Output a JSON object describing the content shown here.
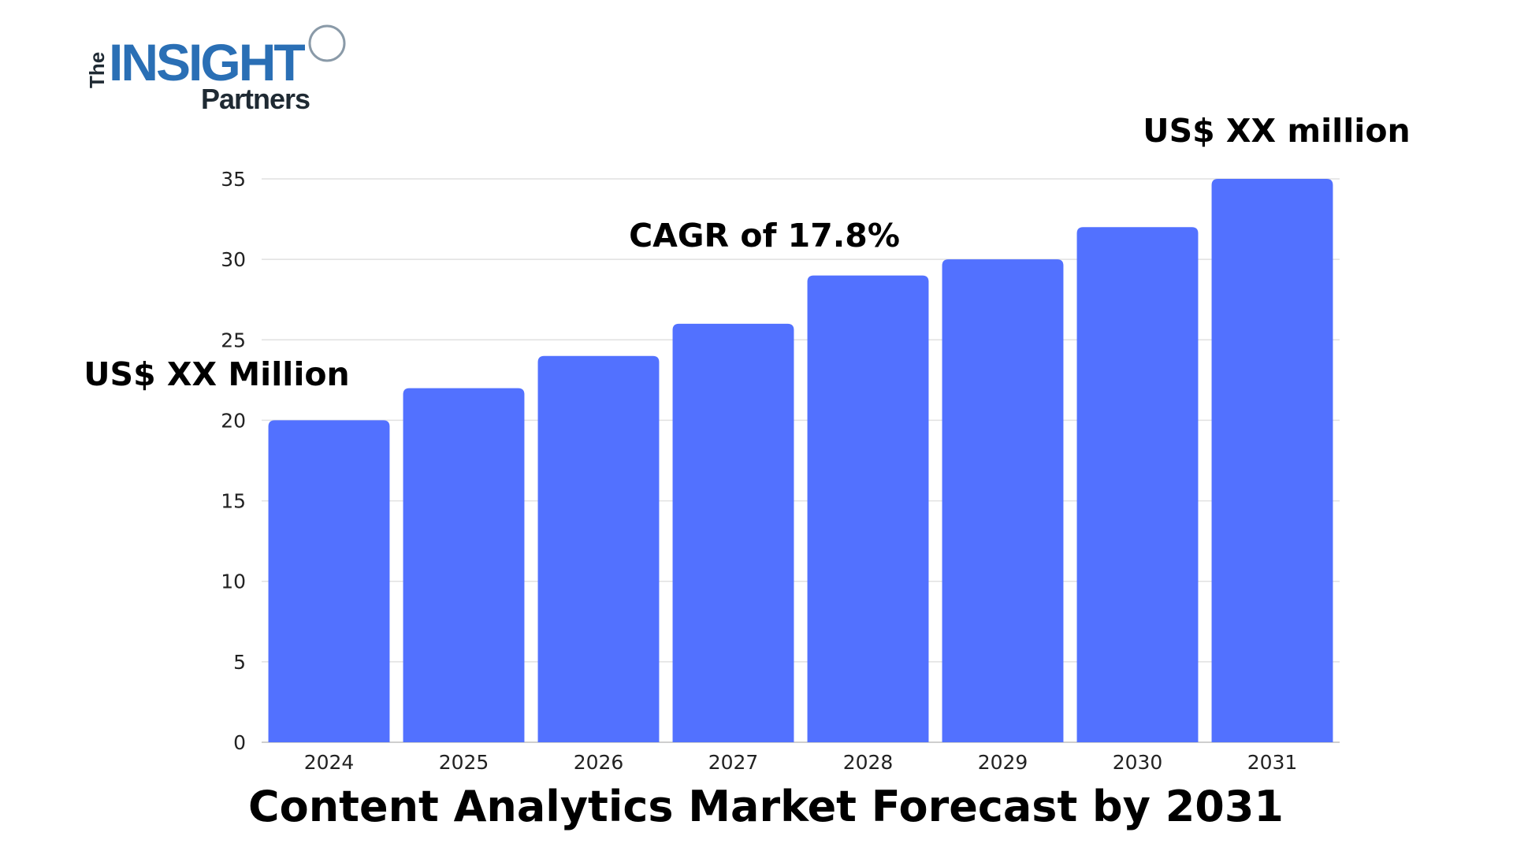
{
  "logo": {
    "the": "The",
    "insight": "INSIGHT",
    "partners": "Partners",
    "colors": {
      "dark": "#1f2a33",
      "blue": "#2a6fb5"
    }
  },
  "chart_data": {
    "type": "bar",
    "title": "Content Analytics Market Forecast by 2031",
    "xlabel": "",
    "ylabel": "",
    "categories": [
      "2024",
      "2025",
      "2026",
      "2027",
      "2028",
      "2029",
      "2030",
      "2031"
    ],
    "values": [
      20,
      22,
      24,
      26,
      29,
      30,
      32,
      35
    ],
    "ylim": [
      0,
      35
    ],
    "yticks": [
      0,
      5,
      10,
      15,
      20,
      25,
      30,
      35
    ],
    "grid": true,
    "bar_color": "#5271ff",
    "annotations": {
      "start_value": "US$ XX Million",
      "cagr": "CAGR of 17.8%",
      "end_value": "US$ XX million"
    }
  }
}
